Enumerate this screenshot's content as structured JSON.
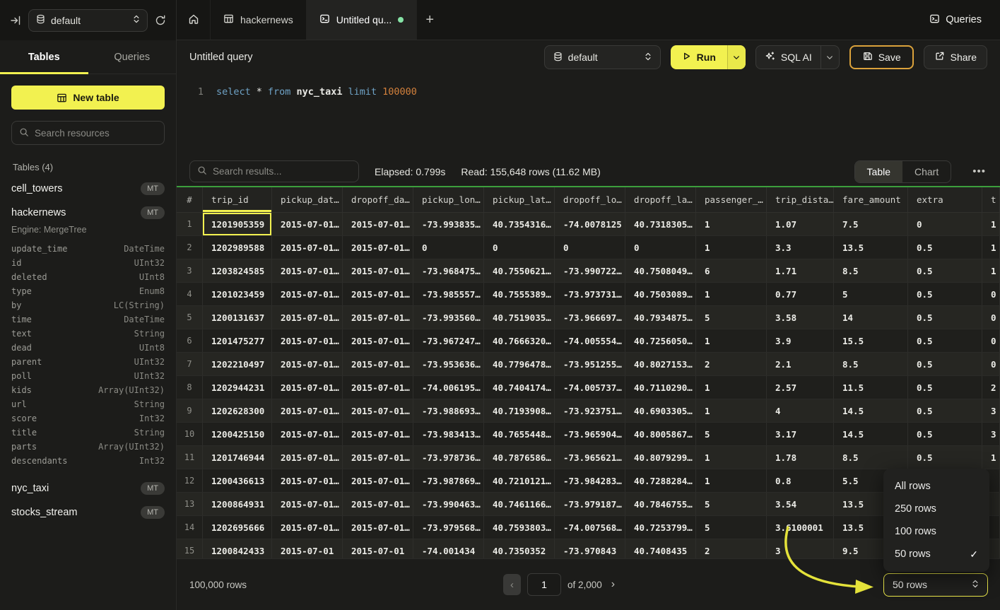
{
  "colors": {
    "accent_yellow": "#f2f150",
    "save_border": "#dba23b",
    "grid_green": "#3c9e3c",
    "dot_green": "#86e3a6",
    "sql_kw": "#6fa3c7",
    "sql_num": "#d2803c"
  },
  "topbar": {
    "database": "default",
    "tab_hackernews": "hackernews",
    "tab_untitled": "Untitled qu...",
    "queries_label": "Queries",
    "plus": "+"
  },
  "sidebar": {
    "tab_tables": "Tables",
    "tab_queries": "Queries",
    "new_table": "New table",
    "search_placeholder": "Search resources",
    "section": "Tables (4)",
    "badge": "MT",
    "cell_towers": "cell_towers",
    "hackernews": "hackernews",
    "engine": "Engine: MergeTree",
    "columns": [
      {
        "name": "update_time",
        "type": "DateTime"
      },
      {
        "name": "id",
        "type": "UInt32"
      },
      {
        "name": "deleted",
        "type": "UInt8"
      },
      {
        "name": "type",
        "type": "Enum8"
      },
      {
        "name": "by",
        "type": "LC(String)"
      },
      {
        "name": "time",
        "type": "DateTime"
      },
      {
        "name": "text",
        "type": "String"
      },
      {
        "name": "dead",
        "type": "UInt8"
      },
      {
        "name": "parent",
        "type": "UInt32"
      },
      {
        "name": "poll",
        "type": "UInt32"
      },
      {
        "name": "kids",
        "type": "Array(UInt32)"
      },
      {
        "name": "url",
        "type": "String"
      },
      {
        "name": "score",
        "type": "Int32"
      },
      {
        "name": "title",
        "type": "String"
      },
      {
        "name": "parts",
        "type": "Array(UInt32)"
      },
      {
        "name": "descendants",
        "type": "Int32"
      }
    ],
    "nyc_taxi": "nyc_taxi",
    "stocks_stream": "stocks_stream"
  },
  "query": {
    "title": "Untitled query",
    "database": "default",
    "run": "Run",
    "sql_ai": "SQL AI",
    "save": "Save",
    "share": "Share",
    "line_number": "1",
    "sql": {
      "kw1": "select",
      "star": "*",
      "kw2": "from",
      "table": "nyc_taxi",
      "kw3": "limit",
      "number": "100000"
    }
  },
  "results": {
    "search_placeholder": "Search results...",
    "elapsed": "Elapsed: 0.799s",
    "read": "Read: 155,648 rows (11.62 MB)",
    "view_table": "Table",
    "view_chart": "Chart",
    "columns": [
      "#",
      "trip_id",
      "pickup_dat…",
      "dropoff_da…",
      "pickup_lon…",
      "pickup_lat…",
      "dropoff_lo…",
      "dropoff_la…",
      "passenger_…",
      "trip_dista…",
      "fare_amount",
      "extra",
      "t"
    ],
    "rows": [
      [
        "1",
        "1201905359",
        "2015-07-01…",
        "2015-07-01…",
        "-73.993835…",
        "40.7354316…",
        "-74.0078125",
        "40.7318305…",
        "1",
        "1.07",
        "7.5",
        "0",
        "1"
      ],
      [
        "2",
        "1202989588",
        "2015-07-01…",
        "2015-07-01…",
        "0",
        "0",
        "0",
        "0",
        "1",
        "3.3",
        "13.5",
        "0.5",
        "1"
      ],
      [
        "3",
        "1203824585",
        "2015-07-01…",
        "2015-07-01…",
        "-73.968475…",
        "40.7550621…",
        "-73.990722…",
        "40.7508049…",
        "6",
        "1.71",
        "8.5",
        "0.5",
        "1"
      ],
      [
        "4",
        "1201023459",
        "2015-07-01…",
        "2015-07-01…",
        "-73.985557…",
        "40.7555389…",
        "-73.973731…",
        "40.7503089…",
        "1",
        "0.77",
        "5",
        "0.5",
        "0"
      ],
      [
        "5",
        "1200131637",
        "2015-07-01…",
        "2015-07-01…",
        "-73.993560…",
        "40.7519035…",
        "-73.966697…",
        "40.7934875…",
        "5",
        "3.58",
        "14",
        "0.5",
        "0"
      ],
      [
        "6",
        "1201475277",
        "2015-07-01…",
        "2015-07-01…",
        "-73.967247…",
        "40.7666320…",
        "-74.005554…",
        "40.7256050…",
        "1",
        "3.9",
        "15.5",
        "0.5",
        "0"
      ],
      [
        "7",
        "1202210497",
        "2015-07-01…",
        "2015-07-01…",
        "-73.953636…",
        "40.7796478…",
        "-73.951255…",
        "40.8027153…",
        "2",
        "2.1",
        "8.5",
        "0.5",
        "0"
      ],
      [
        "8",
        "1202944231",
        "2015-07-01…",
        "2015-07-01…",
        "-74.006195…",
        "40.7404174…",
        "-74.005737…",
        "40.7110290…",
        "1",
        "2.57",
        "11.5",
        "0.5",
        "2"
      ],
      [
        "9",
        "1202628300",
        "2015-07-01…",
        "2015-07-01…",
        "-73.988693…",
        "40.7193908…",
        "-73.923751…",
        "40.6903305…",
        "1",
        "4",
        "14.5",
        "0.5",
        "3"
      ],
      [
        "10",
        "1200425150",
        "2015-07-01…",
        "2015-07-01…",
        "-73.983413…",
        "40.7655448…",
        "-73.965904…",
        "40.8005867…",
        "5",
        "3.17",
        "14.5",
        "0.5",
        "3"
      ],
      [
        "11",
        "1201746944",
        "2015-07-01…",
        "2015-07-01…",
        "-73.978736…",
        "40.7876586…",
        "-73.965621…",
        "40.8079299…",
        "1",
        "1.78",
        "8.5",
        "0.5",
        "1"
      ],
      [
        "12",
        "1200436613",
        "2015-07-01…",
        "2015-07-01…",
        "-73.987869…",
        "40.7210121…",
        "-73.984283…",
        "40.7288284…",
        "1",
        "0.8",
        "5.5",
        "",
        ""
      ],
      [
        "13",
        "1200864931",
        "2015-07-01…",
        "2015-07-01…",
        "-73.990463…",
        "40.7461166…",
        "-73.979187…",
        "40.7846755…",
        "5",
        "3.54",
        "13.5",
        "",
        ""
      ],
      [
        "14",
        "1202695666",
        "2015-07-01…",
        "2015-07-01…",
        "-73.979568…",
        "40.7593803…",
        "-74.007568…",
        "40.7253799…",
        "5",
        "3.6100001",
        "13.5",
        "",
        ""
      ],
      [
        "15",
        "1200842433",
        "2015-07-01",
        "2015-07-01",
        "-74.001434",
        "40.7350352",
        "-73.970843",
        "40.7408435",
        "2",
        "3",
        "9.5",
        "",
        ""
      ]
    ],
    "footer_total": "100,000 rows",
    "page_value": "1",
    "page_of": "of 2,000",
    "page_size_value": "50 rows",
    "page_size_options": [
      {
        "label": "All rows",
        "checked": false
      },
      {
        "label": "250 rows",
        "checked": false
      },
      {
        "label": "100 rows",
        "checked": false
      },
      {
        "label": "50 rows",
        "checked": true
      }
    ]
  }
}
